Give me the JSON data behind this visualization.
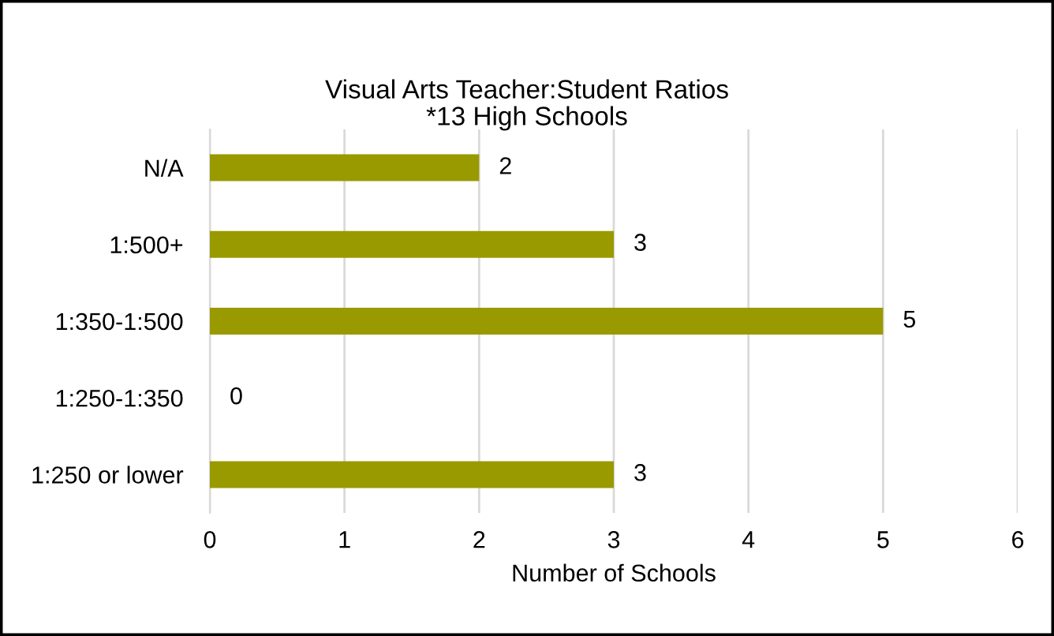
{
  "chart_data": {
    "type": "bar",
    "orientation": "horizontal",
    "title": "Visual Arts Teacher:Student Ratios",
    "subtitle": "*13 High Schools",
    "xlabel": "Number of Schools",
    "categories": [
      "N/A",
      "1:500+",
      "1:350-1:500",
      "1:250-1:350",
      "1:250 or lower"
    ],
    "values": [
      2,
      3,
      5,
      0,
      3
    ],
    "color": "#999900",
    "xlim": [
      0,
      6
    ],
    "xticks": [
      0,
      1,
      2,
      3,
      4,
      5,
      6
    ],
    "grid": "x",
    "data_labels": true
  }
}
